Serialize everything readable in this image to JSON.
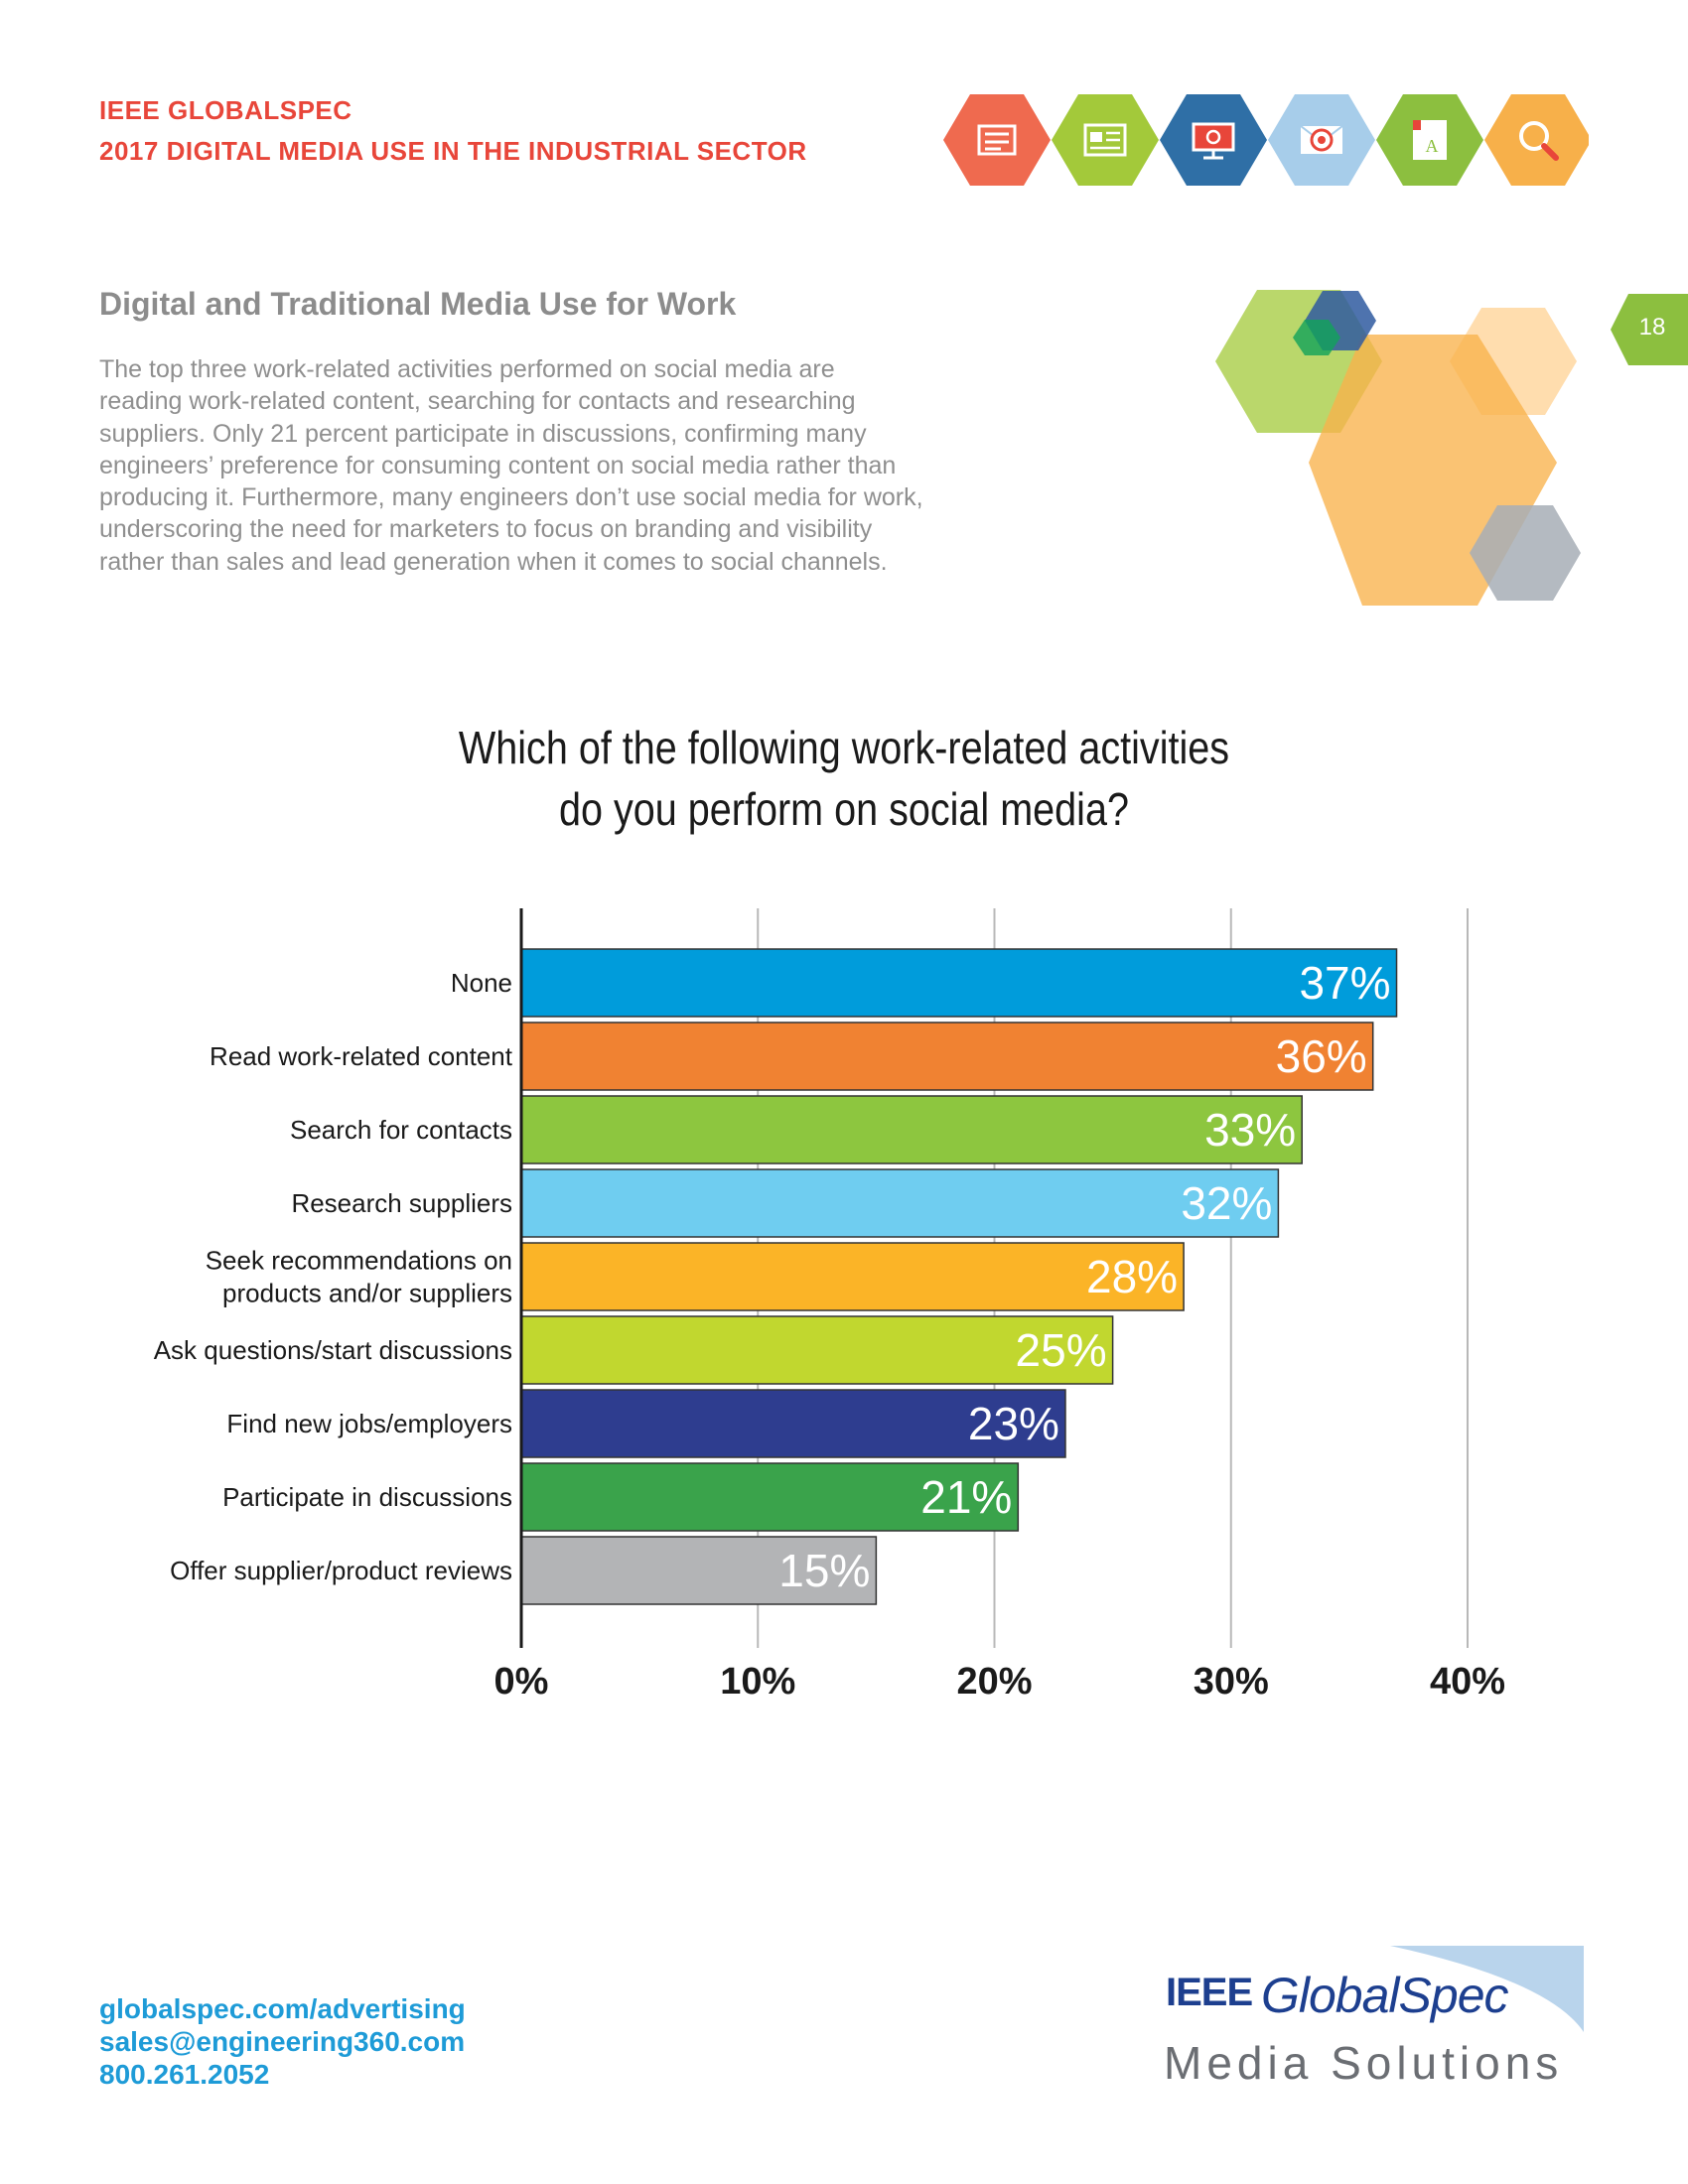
{
  "header": {
    "line1": "IEEE GLOBALSPEC",
    "line2": "2017 DIGITAL MEDIA USE IN THE INDUSTRIAL SECTOR",
    "icons": [
      {
        "name": "newspaper-icon",
        "color": "#ef6a4f"
      },
      {
        "name": "webpage-icon",
        "color": "#a3c93a"
      },
      {
        "name": "monitor-icon",
        "color": "#2f6fa6"
      },
      {
        "name": "email-target-icon",
        "color": "#a7cdea"
      },
      {
        "name": "book-icon",
        "color": "#8cbf3f"
      },
      {
        "name": "search-icon",
        "color": "#f7b04a"
      }
    ]
  },
  "section": {
    "title": "Digital and Traditional Media Use for Work",
    "body_lines": [
      "The top three work-related activities performed on social media are",
      "reading work-related content, searching for contacts and researching",
      "suppliers. Only 21 percent participate in discussions, confirming many",
      "engineers’ preference for consuming content on social media rather than",
      "producing it. Furthermore, many engineers don’t use social media for work,",
      "underscoring the need for marketers to focus on branding and visibility",
      "rather than sales and lead generation when it comes to social channels."
    ]
  },
  "page_number": "18",
  "chart_data": {
    "type": "bar",
    "orientation": "horizontal",
    "title_lines": [
      "Which of the following work-related activities",
      "do you perform on social media?"
    ],
    "categories": [
      [
        "None"
      ],
      [
        "Read work-related content"
      ],
      [
        "Search for contacts"
      ],
      [
        "Research suppliers"
      ],
      [
        "Seek recommendations on",
        "products and/or suppliers"
      ],
      [
        "Ask questions/start discussions"
      ],
      [
        "Find new jobs/employers"
      ],
      [
        "Participate in discussions"
      ],
      [
        "Offer supplier/product reviews"
      ]
    ],
    "values": [
      37,
      36,
      33,
      32,
      28,
      25,
      23,
      21,
      15
    ],
    "value_labels": [
      "37%",
      "36%",
      "33%",
      "32%",
      "28%",
      "25%",
      "23%",
      "21%",
      "15%"
    ],
    "colors": [
      "#009cdb",
      "#f08232",
      "#8dc63f",
      "#6fcdf0",
      "#fbb427",
      "#c1d72f",
      "#2e3d8f",
      "#3aa34b",
      "#b3b4b6"
    ],
    "xlim": [
      0,
      40
    ],
    "xticks": [
      0,
      10,
      20,
      30,
      40
    ],
    "xtick_labels": [
      "0%",
      "10%",
      "20%",
      "30%",
      "40%"
    ],
    "grid": true,
    "xlabel": "",
    "ylabel": ""
  },
  "footer": {
    "website": "globalspec.com/advertising",
    "email": "sales@engineering360.com",
    "phone": "800.261.2052",
    "logo_ieee": "IEEE",
    "logo_brand": "GlobalSpec",
    "logo_tagline": "Media Solutions"
  }
}
